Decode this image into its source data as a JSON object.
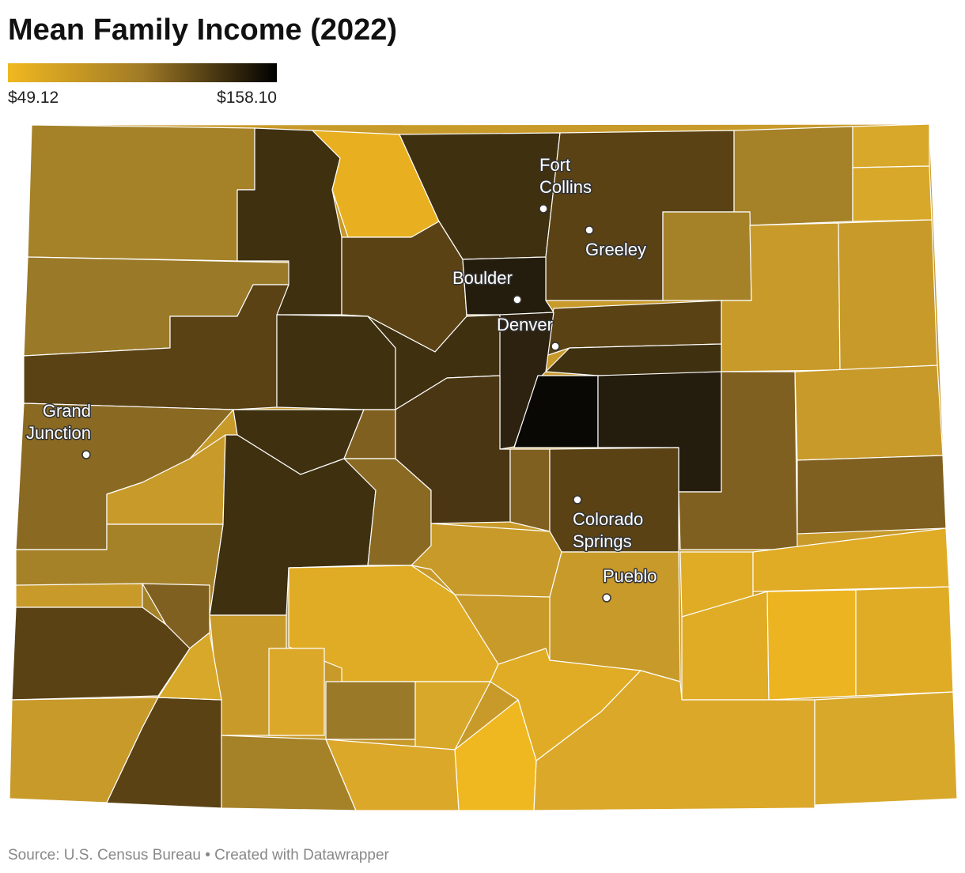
{
  "header": {
    "title": "Mean Family Income (2022)"
  },
  "legend": {
    "min_label": "$49.12",
    "max_label": "$158.10",
    "colors": [
      "#f0b820",
      "#a07a26",
      "#000000"
    ]
  },
  "cities": [
    {
      "label": [
        "Fort",
        "Collins"
      ]
    },
    {
      "label": [
        "Greeley"
      ]
    },
    {
      "label": [
        "Boulder"
      ]
    },
    {
      "label": [
        "Denver"
      ]
    },
    {
      "label": [
        "Grand",
        "Junction"
      ]
    },
    {
      "label": [
        "Colorado",
        "Springs"
      ]
    },
    {
      "label": [
        "Pueblo"
      ]
    }
  ],
  "footer": {
    "source": "Source: U.S. Census Bureau • Created with Datawrapper"
  }
}
